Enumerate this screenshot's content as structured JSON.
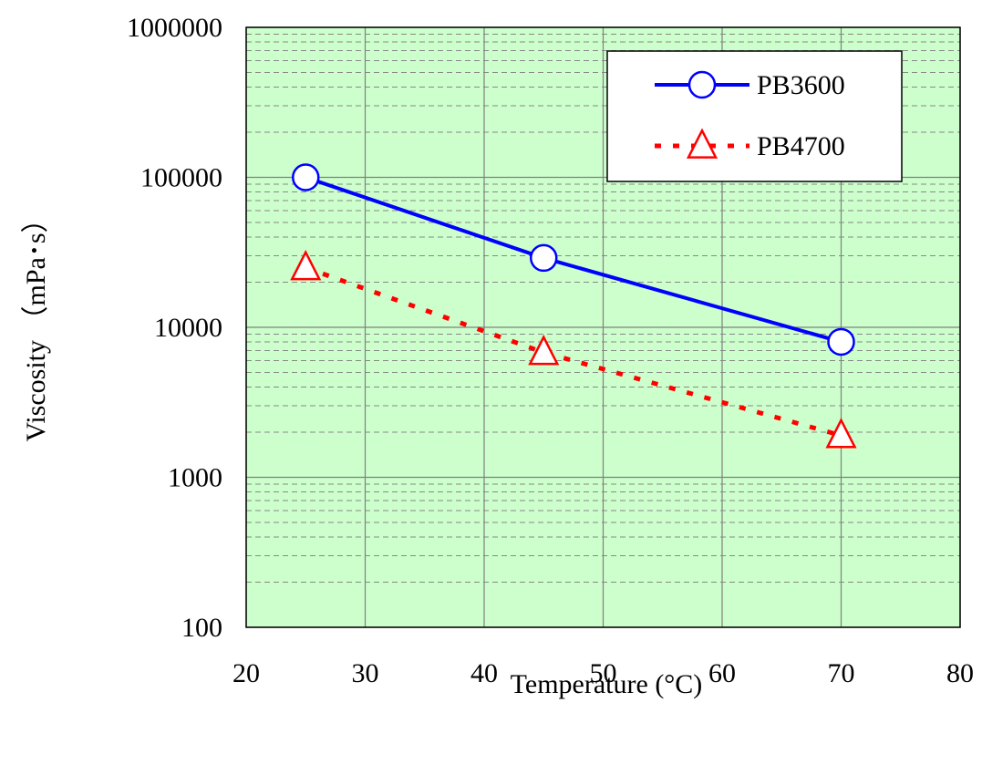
{
  "chart_data": {
    "type": "line",
    "xlabel": "Temperature (°C)",
    "ylabel": "Viscosity （mPa･s）",
    "x_ticks": [
      "20",
      "30",
      "40",
      "50",
      "60",
      "70",
      "80"
    ],
    "y_ticks": [
      "100",
      "1000",
      "10000",
      "100000",
      "1000000"
    ],
    "xlim": [
      20,
      80
    ],
    "ylim": [
      100,
      1000000
    ],
    "y_scale": "log",
    "grid": true,
    "plot_background": "#ccffcc",
    "legend_position": "top-right",
    "series": [
      {
        "name": "PB3600",
        "color": "#0000ff",
        "line_style": "solid",
        "marker": "circle",
        "x": [
          25,
          45,
          70
        ],
        "y": [
          100000,
          29000,
          8000
        ]
      },
      {
        "name": "PB4700",
        "color": "#ff0000",
        "line_style": "dotted",
        "marker": "triangle",
        "x": [
          25,
          45,
          70
        ],
        "y": [
          25000,
          6800,
          1900
        ]
      }
    ]
  }
}
